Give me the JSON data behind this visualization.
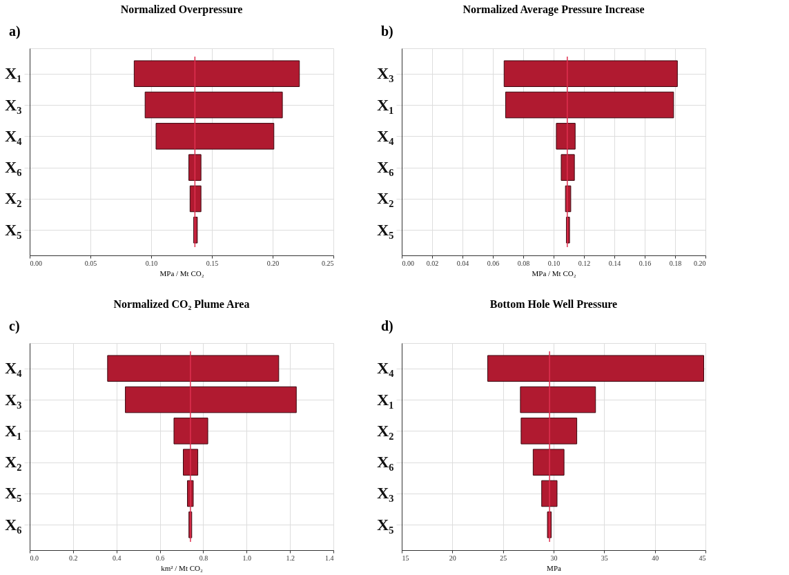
{
  "chart_data": [
    {
      "type": "bar",
      "orientation": "horizontal",
      "title": "Normalized Overpressure",
      "annotations": [
        "a)"
      ],
      "xlabel": "MPa / Mt CO₂",
      "categories": [
        "X₁",
        "X₃",
        "X₄",
        "X₆",
        "X₂",
        "X₅"
      ],
      "base": [
        0.086,
        0.095,
        0.104,
        0.131,
        0.132,
        0.135
      ],
      "values": [
        0.136,
        0.113,
        0.097,
        0.01,
        0.009,
        0.003
      ],
      "color": "#b01a30",
      "xlim": [
        0,
        0.25
      ],
      "xticks": [
        {
          "value": 0,
          "label": "0.00"
        },
        0.05,
        {
          "value": 0.1,
          "label": "0.10"
        },
        0.15,
        {
          "value": 0.2,
          "label": "0.20"
        },
        0.25
      ],
      "grid": true,
      "ref_lines": [
        {
          "axis": "x",
          "value": 0.136,
          "color": "#e03050"
        }
      ]
    },
    {
      "type": "bar",
      "orientation": "horizontal",
      "title": "Normalized Average Pressure Increase",
      "annotations": [
        "b)"
      ],
      "xlabel": "MPa / Mt CO₂",
      "categories": [
        "X₃",
        "X₁",
        "X₄",
        "X₆",
        "X₂",
        "X₅"
      ],
      "base": [
        0.0674,
        0.0684,
        0.1018,
        0.105,
        0.1078,
        0.1084
      ],
      "values": [
        0.1141,
        0.1106,
        0.0124,
        0.0087,
        0.0035,
        0.0021
      ],
      "color": "#b01a30",
      "xlim": [
        0,
        0.2
      ],
      "xticks": [
        {
          "value": 0,
          "label": "0.00"
        },
        0.02,
        0.04,
        0.06,
        0.08,
        {
          "value": 0.1,
          "label": "0.10"
        },
        0.12,
        0.14,
        0.16,
        0.18,
        {
          "value": 0.2,
          "label": "0.20"
        }
      ],
      "grid": true,
      "ref_lines": [
        {
          "axis": "x",
          "value": 0.109,
          "color": "#e03050"
        }
      ]
    },
    {
      "type": "bar",
      "orientation": "horizontal",
      "title": "Normalized CO₂ Plume Area",
      "annotations": [
        "c)"
      ],
      "xlabel": "km² / Mt CO₂",
      "categories": [
        "X₄",
        "X₃",
        "X₁",
        "X₂",
        "X₅",
        "X₆"
      ],
      "base": [
        0.359,
        0.441,
        0.665,
        0.708,
        0.727,
        0.734
      ],
      "values": [
        0.789,
        0.788,
        0.156,
        0.067,
        0.027,
        0.013
      ],
      "color": "#b01a30",
      "xlim": [
        0,
        1.4
      ],
      "xticks": [
        {
          "value": 0,
          "label": "0.0"
        },
        0.2,
        0.4,
        0.6,
        0.8,
        {
          "value": 1,
          "label": "1.0"
        },
        1.2,
        1.4
      ],
      "grid": true,
      "ref_lines": [
        {
          "axis": "x",
          "value": 0.741,
          "color": "#e03050"
        }
      ]
    },
    {
      "type": "bar",
      "orientation": "horizontal",
      "title": "Bottom Hole Well Pressure",
      "annotations": [
        "d)"
      ],
      "xlabel": "MPa",
      "categories": [
        "X₄",
        "X₁",
        "X₂",
        "X₆",
        "X₃",
        "X₅"
      ],
      "base": [
        23.49,
        26.72,
        26.79,
        27.98,
        28.82,
        29.39
      ],
      "values": [
        21.34,
        7.42,
        5.5,
        3.05,
        1.52,
        0.38
      ],
      "color": "#b01a30",
      "xlim": [
        15,
        45
      ],
      "xticks": [
        15,
        20,
        25,
        30,
        35,
        40,
        45
      ],
      "grid": true,
      "ref_lines": [
        {
          "axis": "x",
          "value": 29.6,
          "color": "#e03050"
        }
      ]
    }
  ]
}
